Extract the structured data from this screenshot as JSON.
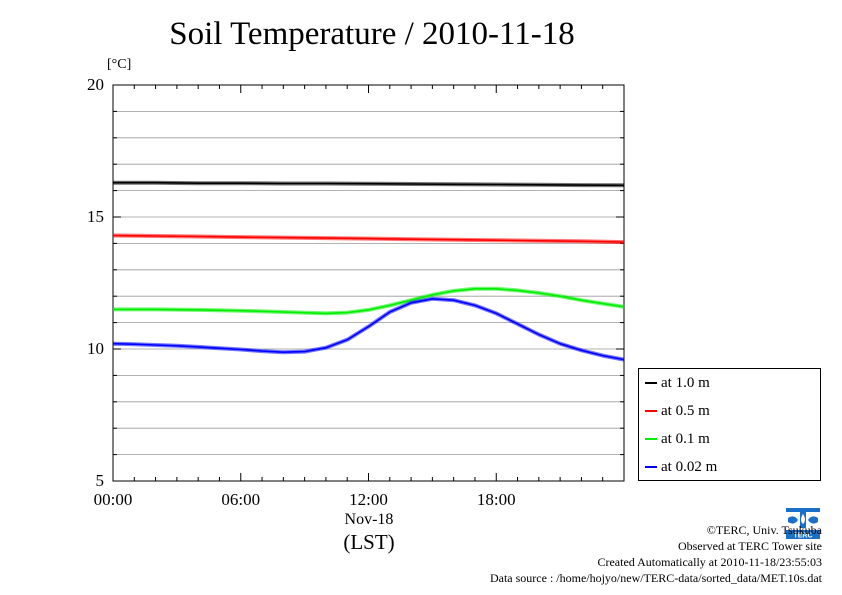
{
  "chart_data": {
    "type": "line",
    "title": "Soil Temperature / 2010-11-18",
    "ylabel": "[°C]",
    "xlabel": "(LST)",
    "xdate": "Nov-18",
    "ylim": [
      5,
      20
    ],
    "xlim": [
      0,
      24
    ],
    "yticks": [
      5,
      10,
      15,
      20
    ],
    "xticks": [
      0,
      6,
      12,
      18
    ],
    "xtick_labels": [
      "00:00",
      "06:00",
      "12:00",
      "18:00"
    ],
    "grid": true,
    "legend_position": "bottom-right outside",
    "series": [
      {
        "name": "at 1.0 m",
        "color": "#000000",
        "x": [
          0,
          2,
          4,
          6,
          8,
          10,
          12,
          14,
          16,
          18,
          20,
          22,
          24
        ],
        "y": [
          16.3,
          16.3,
          16.28,
          16.28,
          16.27,
          16.27,
          16.26,
          16.25,
          16.24,
          16.23,
          16.22,
          16.21,
          16.2
        ]
      },
      {
        "name": "at 0.5 m",
        "color": "#ff0000",
        "x": [
          0,
          2,
          4,
          6,
          8,
          10,
          12,
          14,
          16,
          18,
          20,
          22,
          24
        ],
        "y": [
          14.3,
          14.28,
          14.26,
          14.24,
          14.22,
          14.2,
          14.18,
          14.16,
          14.14,
          14.12,
          14.1,
          14.08,
          14.05
        ]
      },
      {
        "name": "at 0.1 m",
        "color": "#00ee00",
        "x": [
          0,
          2,
          4,
          6,
          8,
          10,
          11,
          12,
          13,
          14,
          15,
          16,
          17,
          18,
          19,
          20,
          21,
          22,
          23,
          24
        ],
        "y": [
          11.5,
          11.5,
          11.48,
          11.45,
          11.4,
          11.35,
          11.38,
          11.48,
          11.65,
          11.85,
          12.05,
          12.2,
          12.28,
          12.28,
          12.22,
          12.12,
          12.0,
          11.85,
          11.72,
          11.6
        ]
      },
      {
        "name": "at 0.02 m",
        "color": "#0000ff",
        "x": [
          0,
          1,
          2,
          3,
          4,
          5,
          6,
          7,
          8,
          9,
          10,
          11,
          12,
          13,
          14,
          15,
          16,
          17,
          18,
          19,
          20,
          21,
          22,
          23,
          24
        ],
        "y": [
          10.2,
          10.18,
          10.15,
          10.12,
          10.08,
          10.03,
          9.98,
          9.92,
          9.88,
          9.9,
          10.05,
          10.35,
          10.85,
          11.4,
          11.75,
          11.9,
          11.85,
          11.65,
          11.35,
          10.95,
          10.55,
          10.2,
          9.95,
          9.75,
          9.6
        ]
      }
    ]
  },
  "credits": {
    "line1": "©TERC, Univ. Tsukuba",
    "line2": "Observed at TERC Tower site",
    "line3": "Created Automatically at 2010-11-18/23:55:03",
    "line4": "Data source : /home/hojyo/new/TERC-data/sorted_data/MET.10s.dat"
  },
  "logo_text": "TERC"
}
